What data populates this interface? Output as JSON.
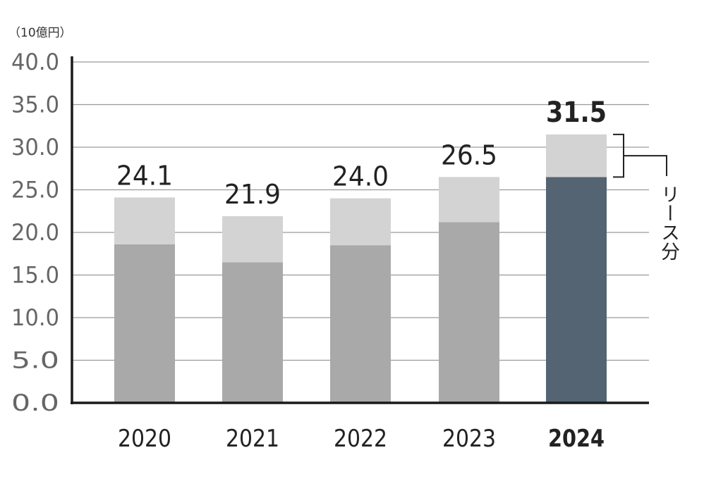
{
  "chart_data": {
    "type": "bar",
    "stacked": true,
    "unit_label": "（10億円）",
    "categories": [
      "2020",
      "2021",
      "2022",
      "2023",
      "2024"
    ],
    "highlight_category": "2024",
    "series": [
      {
        "values": [
          18.6,
          16.5,
          18.5,
          21.2,
          26.5
        ]
      },
      {
        "name": "リース分",
        "values": [
          5.5,
          5.4,
          5.5,
          5.3,
          5.0
        ]
      }
    ],
    "totals": [
      24.1,
      21.9,
      24.0,
      26.5,
      31.5
    ],
    "total_labels": [
      "24.1",
      "21.9",
      "24.0",
      "26.5",
      "31.5"
    ],
    "y_ticks": [
      "0.0",
      "5.0",
      "10.0",
      "15.0",
      "20.0",
      "25.0",
      "30.0",
      "35.0",
      "40.0"
    ],
    "ylim": [
      0,
      40
    ],
    "grid": true,
    "colors": {
      "base": "#a9a9a9",
      "lease": "#d3d3d3",
      "highlight_base": "#546473",
      "text": "#222222",
      "tick_text": "#666666",
      "grid": "#9a9a9a",
      "axis": "#1a1a1a"
    }
  }
}
